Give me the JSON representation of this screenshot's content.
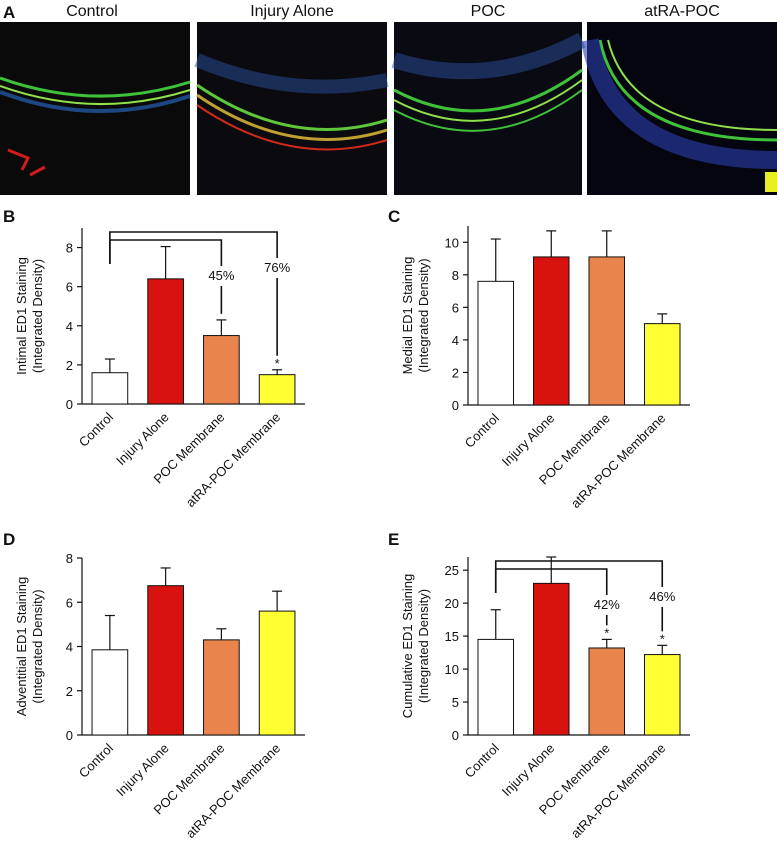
{
  "panel_a": {
    "label": "A",
    "titles": [
      "Control",
      "Injury Alone",
      "POC",
      "atRA-POC"
    ]
  },
  "chart_data": [
    {
      "type": "bar",
      "panel": "B",
      "ylabel": [
        "Intimal ED1 Staining",
        "(Integrated Density)"
      ],
      "categories": [
        "Control",
        "Injury Alone",
        "POC Membrane",
        "atRA-POC Membrane"
      ],
      "values": [
        1.6,
        6.4,
        3.5,
        1.5
      ],
      "errors": [
        0.7,
        1.65,
        0.8,
        0.25
      ],
      "colors": [
        "#ffffff",
        "#d7120f",
        "#e8844c",
        "#ffff33"
      ],
      "ylim": [
        0,
        9
      ],
      "yticks": [
        0,
        2,
        4,
        6,
        8
      ],
      "brackets": [
        {
          "target": 2,
          "label": "45%"
        },
        {
          "target": 3,
          "label": "76%"
        }
      ],
      "significance": [
        null,
        null,
        null,
        "*"
      ]
    },
    {
      "type": "bar",
      "panel": "C",
      "ylabel": [
        "Medial ED1 Staining",
        "(Integrated Density)"
      ],
      "categories": [
        "Control",
        "Injury Alone",
        "POC Membrane",
        "atRA-POC Membrane"
      ],
      "values": [
        7.6,
        9.1,
        9.1,
        5.0
      ],
      "errors": [
        2.6,
        1.6,
        1.6,
        0.6
      ],
      "colors": [
        "#ffffff",
        "#d7120f",
        "#e8844c",
        "#ffff33"
      ],
      "ylim": [
        0,
        11
      ],
      "yticks": [
        0,
        2,
        4,
        6,
        8,
        10
      ]
    },
    {
      "type": "bar",
      "panel": "D",
      "ylabel": [
        "Adventitial  ED1 Staining",
        "(Integrated Density)"
      ],
      "categories": [
        "Control",
        "Injury Alone",
        "POC Membrane",
        "atRA-POC Membrane"
      ],
      "values": [
        3.85,
        6.75,
        4.3,
        5.6
      ],
      "errors": [
        1.55,
        0.8,
        0.5,
        0.9
      ],
      "colors": [
        "#ffffff",
        "#d7120f",
        "#e8844c",
        "#ffff33"
      ],
      "ylim": [
        0,
        8
      ],
      "yticks": [
        0,
        2,
        4,
        6,
        8
      ]
    },
    {
      "type": "bar",
      "panel": "E",
      "ylabel": [
        "Cumulative ED1 Staining",
        "(Integrated Density)"
      ],
      "categories": [
        "Control",
        "Injury Alone",
        "POC Membrane",
        "atRA-POC Membrane"
      ],
      "values": [
        14.5,
        23,
        13.2,
        12.2
      ],
      "errors": [
        4.5,
        4,
        1.3,
        1.4
      ],
      "colors": [
        "#ffffff",
        "#d7120f",
        "#e8844c",
        "#ffff33"
      ],
      "ylim": [
        0,
        27
      ],
      "yticks": [
        0,
        5,
        10,
        15,
        20,
        25
      ],
      "brackets": [
        {
          "target": 2,
          "label": "42%"
        },
        {
          "target": 3,
          "label": "46%"
        }
      ],
      "significance": [
        null,
        null,
        "*",
        "*"
      ]
    }
  ]
}
